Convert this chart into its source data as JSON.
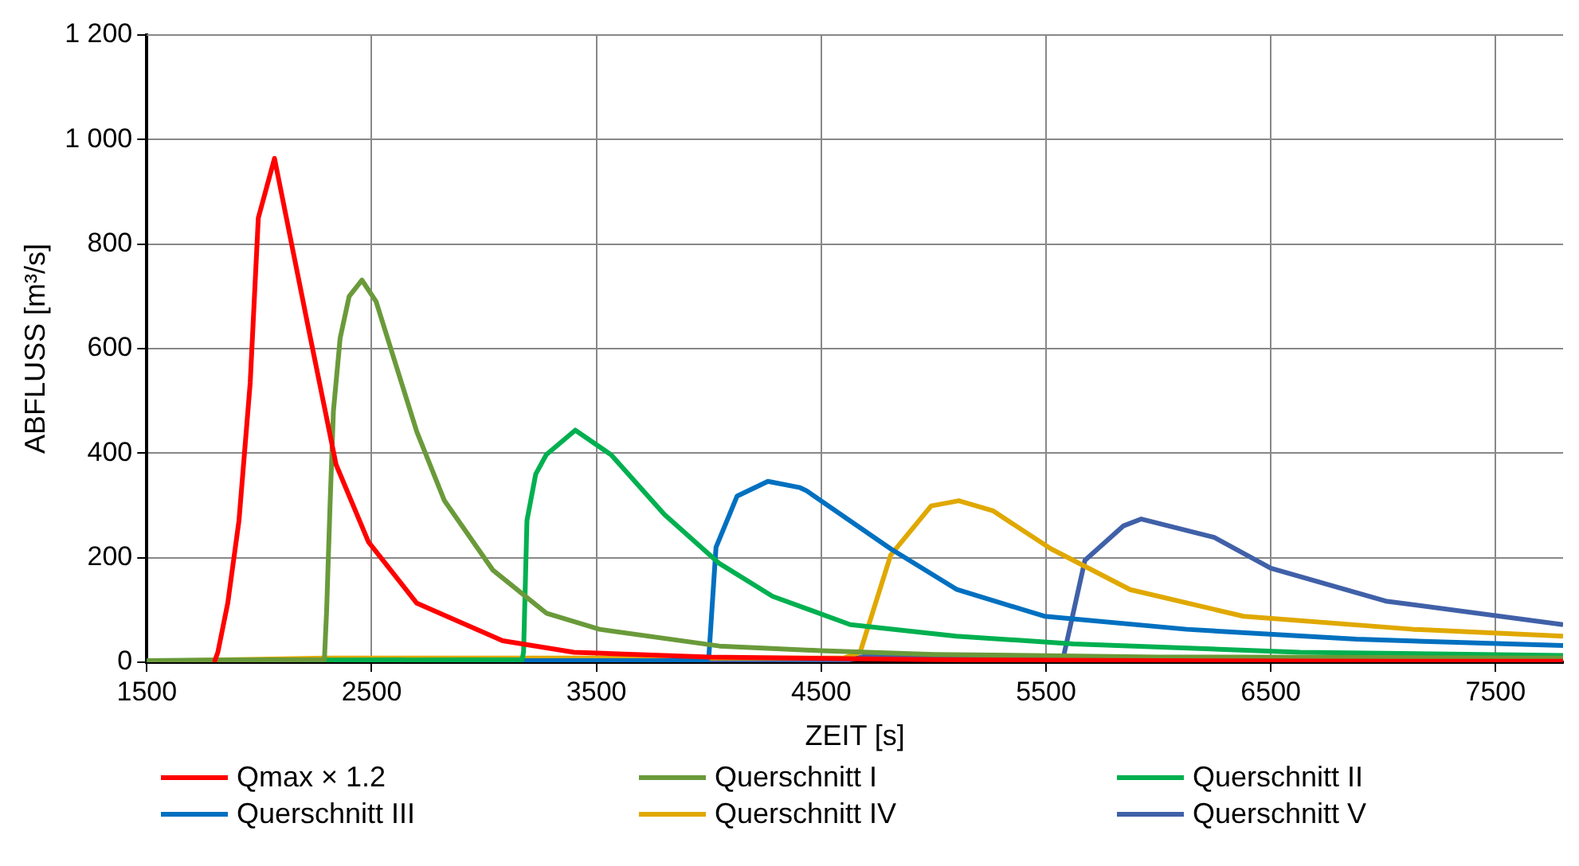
{
  "chart_data": {
    "type": "line",
    "xlabel": "ZEIT [s]",
    "ylabel": "ABFLUSS [m³/s]",
    "xlim": [
      1500,
      7800
    ],
    "xticks": [
      1500,
      2500,
      3500,
      4500,
      5500,
      6500,
      7500
    ],
    "ylim": [
      0,
      1200
    ],
    "yticks": [
      0,
      200,
      400,
      600,
      800,
      {
        "value": 1000,
        "label": "1 000"
      },
      {
        "value": 1200,
        "label": "1 200"
      }
    ],
    "grid": true,
    "legend": "bottom",
    "marker": "none",
    "line_style": "solid",
    "series": [
      {
        "name": "Qmax × 1.2",
        "color": "#ff0000",
        "x": [
          1800,
          1816,
          1860,
          1910,
          1960,
          1996,
          2068,
          2219,
          2342,
          2486,
          2701,
          3083,
          3400,
          4000,
          5000,
          6000,
          7000,
          7800
        ],
        "values": [
          0,
          19,
          113,
          271,
          535,
          850,
          964,
          639,
          378,
          230,
          113,
          41,
          19,
          10,
          5,
          3,
          2,
          2
        ]
      },
      {
        "name": "Querschnitt I",
        "color": "#6a9a3a",
        "x": [
          1500,
          2290,
          2300,
          2315,
          2330,
          2360,
          2400,
          2457,
          2520,
          2600,
          2701,
          2824,
          3040,
          3277,
          3514,
          4047,
          4500,
          5000,
          6000,
          7000,
          7800
        ],
        "values": [
          3,
          5,
          100,
          300,
          480,
          620,
          700,
          731,
          690,
          580,
          441,
          309,
          176,
          94,
          63,
          31,
          22,
          15,
          10,
          9,
          8
        ]
      },
      {
        "name": "Querschnitt II",
        "color": "#00b050",
        "x": [
          1500,
          3170,
          3176,
          3191,
          3230,
          3277,
          3406,
          3565,
          3802,
          4047,
          4284,
          4629,
          5100,
          5622,
          6629,
          7800
        ],
        "values": [
          3,
          5,
          20,
          271,
          360,
          397,
          444,
          397,
          283,
          189,
          126,
          72,
          50,
          35,
          19,
          13
        ]
      },
      {
        "name": "Querschnitt III",
        "color": "#0070c0",
        "x": [
          1500,
          3990,
          4000,
          4032,
          4126,
          4263,
          4406,
          4435,
          4809,
          5104,
          5493,
          6126,
          6881,
          7800
        ],
        "values": [
          3,
          3,
          10,
          220,
          318,
          346,
          334,
          328,
          217,
          139,
          88,
          63,
          44,
          32
        ]
      },
      {
        "name": "Querschnitt IV",
        "color": "#e0a800",
        "x": [
          1500,
          2300,
          4600,
          4673,
          4809,
          4989,
          5112,
          5263,
          5522,
          5874,
          6378,
          7133,
          7800
        ],
        "values": [
          2,
          8,
          8,
          19,
          205,
          299,
          309,
          290,
          217,
          139,
          88,
          63,
          50
        ]
      },
      {
        "name": "Querschnitt V",
        "color": "#4060a8",
        "x": [
          1500,
          4600,
          4700,
          5560,
          5579,
          5673,
          5845,
          5924,
          6248,
          6500,
          7011,
          7800
        ],
        "values": [
          2,
          2,
          12,
          12,
          13,
          195,
          261,
          274,
          239,
          180,
          117,
          72
        ]
      }
    ]
  }
}
